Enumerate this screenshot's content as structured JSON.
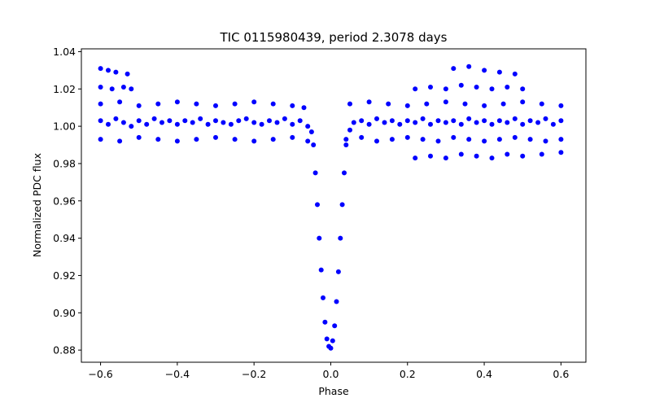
{
  "chart_data": {
    "type": "scatter",
    "title": "TIC 0115980439, period 2.3078 days",
    "xlabel": "Phase",
    "ylabel": "Normalized PDC flux",
    "xlim": [
      -0.65,
      0.665
    ],
    "ylim": [
      0.8735,
      1.0415
    ],
    "xticks": [
      -0.6,
      -0.4,
      -0.2,
      0.0,
      0.2,
      0.4,
      0.6
    ],
    "xtick_labels": [
      "−0.6",
      "−0.4",
      "−0.2",
      "0.0",
      "0.2",
      "0.4",
      "0.6"
    ],
    "yticks": [
      0.88,
      0.9,
      0.92,
      0.94,
      0.96,
      0.98,
      1.0,
      1.02,
      1.04
    ],
    "ytick_labels": [
      "0.88",
      "0.90",
      "0.92",
      "0.94",
      "0.96",
      "0.98",
      "1.00",
      "1.02",
      "1.04"
    ],
    "grid": false,
    "marker_color": "#0000ff",
    "series": [
      {
        "x": [
          -0.6,
          -0.58,
          -0.56,
          -0.54,
          -0.52,
          -0.5,
          -0.48,
          -0.46,
          -0.44,
          -0.42,
          -0.4,
          -0.38,
          -0.36,
          -0.34,
          -0.32,
          -0.3,
          -0.28,
          -0.26,
          -0.24,
          -0.22,
          -0.2,
          -0.18,
          -0.16,
          -0.14,
          -0.12,
          -0.1,
          -0.08,
          -0.06,
          -0.05,
          -0.045,
          -0.04,
          -0.035,
          -0.03,
          -0.025,
          -0.02,
          -0.015,
          -0.01,
          -0.005,
          0.0,
          0.005,
          0.01,
          0.015,
          0.02,
          0.025,
          0.03,
          0.035,
          0.04,
          0.05,
          0.06,
          0.08,
          0.1,
          0.12,
          0.14,
          0.16,
          0.18,
          0.2,
          0.22,
          0.24,
          0.26,
          0.28,
          0.3,
          0.32,
          0.34,
          0.36,
          0.38,
          0.4,
          0.42,
          0.44,
          0.46,
          0.48,
          0.5,
          0.52,
          0.54,
          0.56,
          0.58,
          0.6,
          -0.6,
          -0.55,
          -0.5,
          -0.45,
          -0.4,
          -0.35,
          -0.3,
          -0.25,
          -0.2,
          -0.15,
          -0.1,
          -0.07,
          0.05,
          0.1,
          0.15,
          0.2,
          0.25,
          0.3,
          0.35,
          0.4,
          0.45,
          0.5,
          0.55,
          0.6,
          -0.6,
          -0.55,
          -0.5,
          -0.45,
          -0.4,
          -0.35,
          -0.3,
          -0.25,
          -0.2,
          -0.15,
          -0.1,
          -0.06,
          0.04,
          0.08,
          0.12,
          0.16,
          0.2,
          0.24,
          0.28,
          0.32,
          0.36,
          0.4,
          0.44,
          0.48,
          0.52,
          0.56,
          0.6,
          -0.6,
          -0.57,
          -0.54,
          -0.52,
          0.22,
          0.26,
          0.3,
          0.34,
          0.38,
          0.42,
          0.46,
          0.5,
          -0.6,
          -0.58,
          -0.56,
          -0.53,
          0.32,
          0.36,
          0.4,
          0.44,
          0.48,
          0.22,
          0.26,
          0.3,
          0.34,
          0.38,
          0.42,
          0.46,
          0.5,
          0.55,
          0.6
        ],
        "y": [
          1.003,
          1.001,
          1.004,
          1.002,
          1.0,
          1.003,
          1.001,
          1.004,
          1.002,
          1.003,
          1.001,
          1.003,
          1.002,
          1.004,
          1.001,
          1.003,
          1.002,
          1.001,
          1.003,
          1.004,
          1.002,
          1.001,
          1.003,
          1.002,
          1.004,
          1.001,
          1.003,
          1.0,
          0.997,
          0.99,
          0.975,
          0.958,
          0.94,
          0.923,
          0.908,
          0.895,
          0.886,
          0.882,
          0.881,
          0.885,
          0.893,
          0.906,
          0.922,
          0.94,
          0.958,
          0.975,
          0.99,
          0.998,
          1.002,
          1.003,
          1.001,
          1.004,
          1.002,
          1.003,
          1.001,
          1.003,
          1.002,
          1.004,
          1.001,
          1.003,
          1.002,
          1.003,
          1.001,
          1.004,
          1.002,
          1.003,
          1.001,
          1.003,
          1.002,
          1.004,
          1.001,
          1.003,
          1.002,
          1.004,
          1.001,
          1.003,
          1.012,
          1.013,
          1.011,
          1.012,
          1.013,
          1.012,
          1.011,
          1.012,
          1.013,
          1.012,
          1.011,
          1.01,
          1.012,
          1.013,
          1.012,
          1.011,
          1.012,
          1.013,
          1.012,
          1.011,
          1.012,
          1.013,
          1.012,
          1.011,
          0.993,
          0.992,
          0.994,
          0.993,
          0.992,
          0.993,
          0.994,
          0.993,
          0.992,
          0.993,
          0.994,
          0.992,
          0.993,
          0.994,
          0.992,
          0.993,
          0.994,
          0.993,
          0.992,
          0.994,
          0.993,
          0.992,
          0.993,
          0.994,
          0.993,
          0.992,
          0.993,
          1.021,
          1.02,
          1.021,
          1.02,
          1.02,
          1.021,
          1.02,
          1.022,
          1.021,
          1.02,
          1.021,
          1.02,
          1.031,
          1.03,
          1.029,
          1.028,
          1.031,
          1.032,
          1.03,
          1.029,
          1.028,
          0.983,
          0.984,
          0.983,
          0.985,
          0.984,
          0.983,
          0.985,
          0.984,
          0.985,
          0.986
        ]
      }
    ]
  }
}
